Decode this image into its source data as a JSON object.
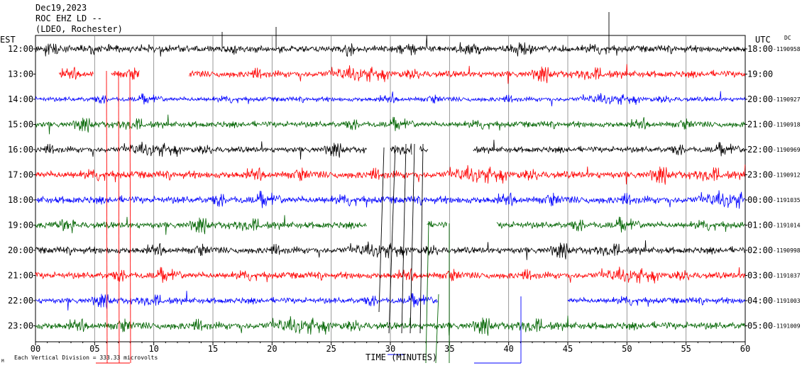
{
  "header": {
    "date": "Dec19,2023",
    "station": "ROC EHZ LD --",
    "network": "(LDEO, Rochester)"
  },
  "axis": {
    "left_label": "EST",
    "right_label": "UTC",
    "dc_label": "DC",
    "xlabel": "TIME (MINUTES)",
    "footer_note": "Each Vertical Division = 333.33 microvolts",
    "footer_mark": "M"
  },
  "chart_data": {
    "type": "line",
    "title": "",
    "xlabel": "TIME (MINUTES)",
    "x_ticks": [
      "00",
      "05",
      "10",
      "15",
      "20",
      "25",
      "30",
      "35",
      "40",
      "45",
      "50",
      "55",
      "60"
    ],
    "xlim": [
      0,
      60
    ],
    "grid": true,
    "colors": [
      "#000000",
      "#ff0000",
      "#0000ff",
      "#006400"
    ],
    "rows": [
      {
        "est": "12:00",
        "utc": "18:00",
        "dc": "-1190958",
        "color": "#000000",
        "segments": [
          [
            0,
            60
          ]
        ],
        "amp": 1.0
      },
      {
        "est": "13:00",
        "utc": "19:00",
        "dc": "",
        "color": "#ff0000",
        "segments": [
          [
            2.0,
            4.9
          ],
          [
            6.4,
            8.8
          ],
          [
            13.0,
            60
          ]
        ],
        "amp": 1.0
      },
      {
        "est": "14:00",
        "utc": "20:00",
        "dc": "-1190927",
        "color": "#0000ff",
        "segments": [
          [
            0,
            60
          ]
        ],
        "amp": 0.7
      },
      {
        "est": "15:00",
        "utc": "21:00",
        "dc": "-1190918",
        "color": "#006400",
        "segments": [
          [
            0,
            60
          ]
        ],
        "amp": 0.9
      },
      {
        "est": "16:00",
        "utc": "22:00",
        "dc": "-1190969",
        "color": "#000000",
        "segments": [
          [
            0,
            28.0
          ],
          [
            30.0,
            31.8
          ],
          [
            32.5,
            33.2
          ],
          [
            37.0,
            60
          ]
        ],
        "amp": 0.9
      },
      {
        "est": "17:00",
        "utc": "23:00",
        "dc": "-1190912",
        "color": "#ff0000",
        "segments": [
          [
            0,
            60
          ]
        ],
        "amp": 1.1
      },
      {
        "est": "18:00",
        "utc": "00:00",
        "dc": "-1191035",
        "color": "#0000ff",
        "segments": [
          [
            0,
            60
          ]
        ],
        "amp": 1.1
      },
      {
        "est": "19:00",
        "utc": "01:00",
        "dc": "-1191014",
        "color": "#006400",
        "segments": [
          [
            0,
            28.0
          ],
          [
            33.1,
            34.8
          ],
          [
            39.0,
            60
          ]
        ],
        "amp": 1.0
      },
      {
        "est": "20:00",
        "utc": "02:00",
        "dc": "-1190998",
        "color": "#000000",
        "segments": [
          [
            0,
            60
          ]
        ],
        "amp": 1.0
      },
      {
        "est": "21:00",
        "utc": "03:00",
        "dc": "-1191037",
        "color": "#ff0000",
        "segments": [
          [
            0,
            60
          ]
        ],
        "amp": 1.0
      },
      {
        "est": "22:00",
        "utc": "04:00",
        "dc": "-1191003",
        "color": "#0000ff",
        "segments": [
          [
            0,
            34.0
          ],
          [
            45.0,
            60
          ]
        ],
        "amp": 0.9
      },
      {
        "est": "23:00",
        "utc": "05:00",
        "dc": "-1191009",
        "color": "#006400",
        "segments": [
          [
            0,
            60
          ]
        ],
        "amp": 1.1
      }
    ]
  }
}
